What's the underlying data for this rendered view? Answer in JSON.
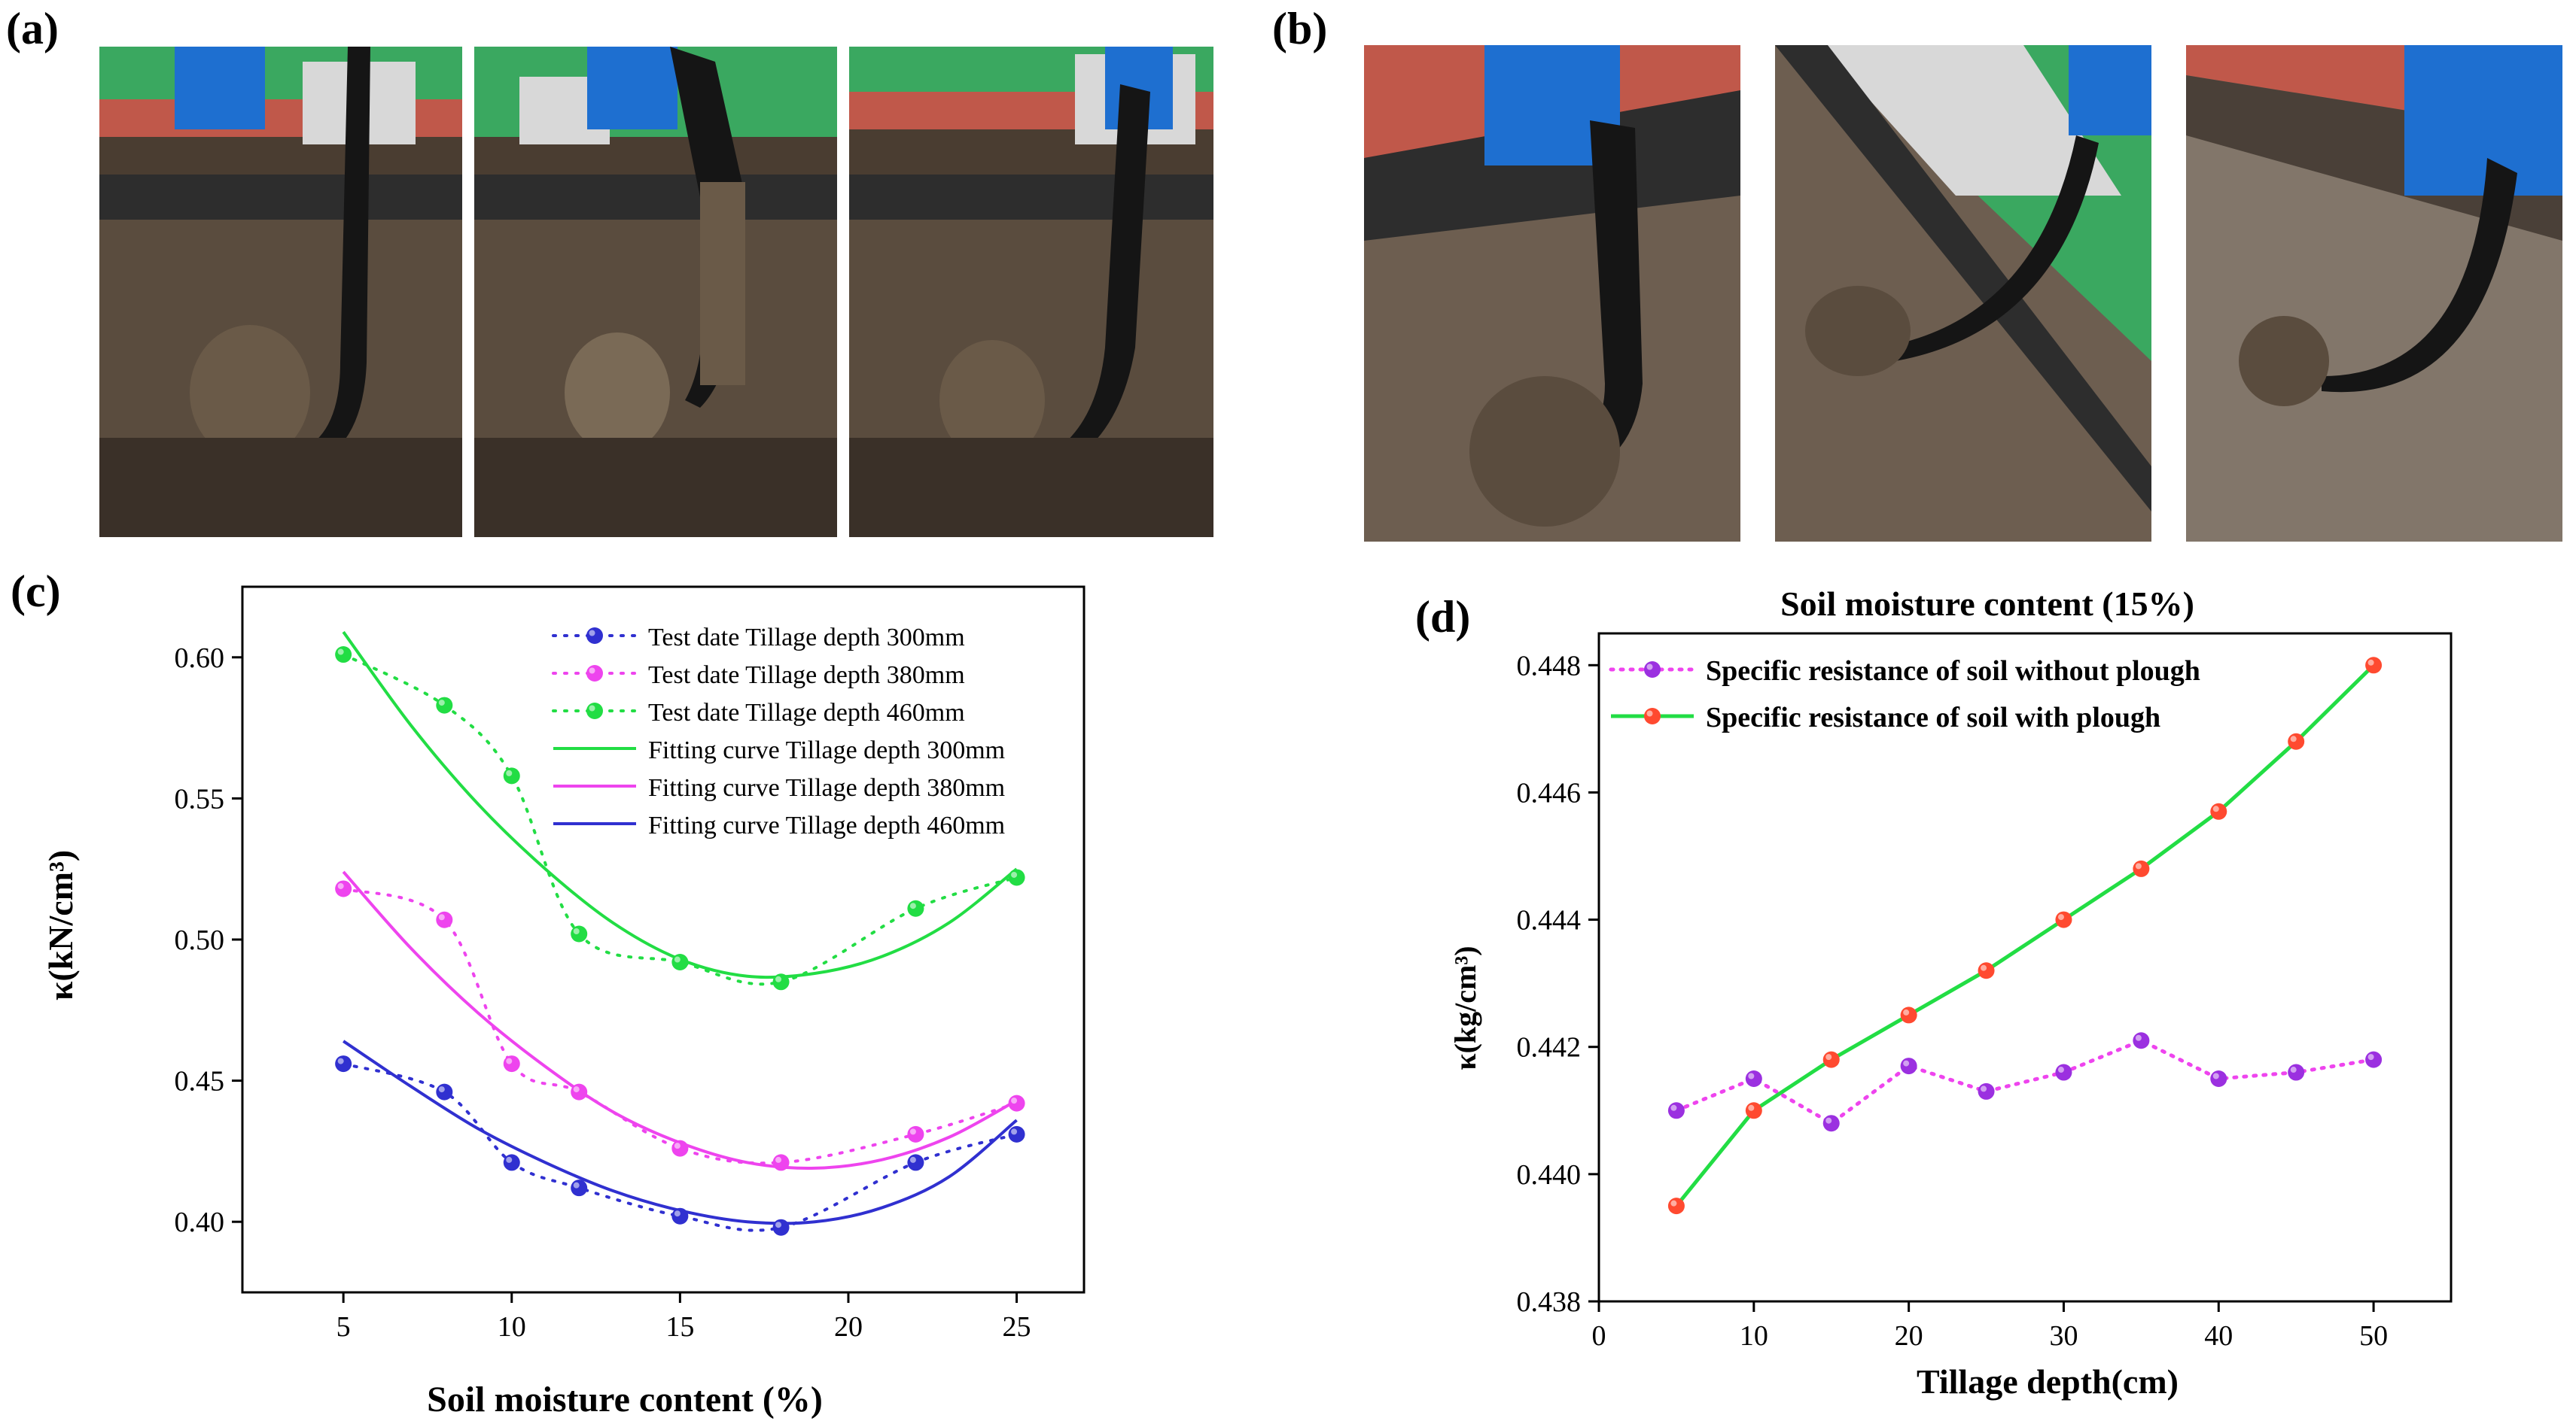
{
  "panels": {
    "a": "(a)",
    "b": "(b)",
    "c": "(c)",
    "d": "(d)"
  },
  "colors": {
    "blue": "#3030d0",
    "magenta": "#ee44ee",
    "green": "#22dd44",
    "purple": "#9b30e0",
    "red": "#ff4a30",
    "frame_blue": "#1e6fd0",
    "rail_red": "#c0584a",
    "wall_green": "#3aa860",
    "soil": "#5a4c3e"
  },
  "chart_data": [
    {
      "id": "c",
      "type": "scatter",
      "title": "",
      "xlabel": "Soil moisture content (%)",
      "ylabel": "κ(kN/cm³)",
      "xlim": [
        2,
        27
      ],
      "ylim": [
        0.375,
        0.625
      ],
      "xticks": [
        5,
        10,
        15,
        20,
        25
      ],
      "yticks": [
        0.4,
        0.45,
        0.5,
        0.55,
        0.6
      ],
      "legend_position": "top-right",
      "test_x": [
        5,
        8,
        10,
        12,
        15,
        18,
        22,
        25
      ],
      "series": [
        {
          "name": "Test date Tillage depth 300mm",
          "kind": "points",
          "color": "#3030d0",
          "x": [
            5,
            8,
            10,
            12,
            15,
            18,
            22,
            25
          ],
          "values": [
            0.456,
            0.446,
            0.421,
            0.412,
            0.402,
            0.398,
            0.421,
            0.431
          ]
        },
        {
          "name": "Test date Tillage depth 380mm",
          "kind": "points",
          "color": "#ee44ee",
          "x": [
            5,
            8,
            10,
            12,
            15,
            18,
            22,
            25
          ],
          "values": [
            0.518,
            0.507,
            0.456,
            0.446,
            0.426,
            0.421,
            0.431,
            0.442
          ]
        },
        {
          "name": "Test date Tillage depth 460mm",
          "kind": "points",
          "color": "#22dd44",
          "x": [
            5,
            8,
            10,
            12,
            15,
            18,
            22,
            25
          ],
          "values": [
            0.601,
            0.583,
            0.558,
            0.502,
            0.492,
            0.485,
            0.511,
            0.522
          ]
        },
        {
          "name": "Fitting curve Tillage depth 300mm",
          "kind": "curve",
          "color": "#22dd44",
          "x": [
            5,
            7,
            9,
            11,
            13,
            15,
            17,
            19,
            21,
            23,
            25
          ],
          "values": [
            0.609,
            0.576,
            0.548,
            0.525,
            0.506,
            0.493,
            0.487,
            0.488,
            0.494,
            0.506,
            0.525
          ]
        },
        {
          "name": "Fitting curve Tillage depth 380mm",
          "kind": "curve",
          "color": "#ee44ee",
          "x": [
            5,
            7,
            9,
            11,
            13,
            15,
            17,
            19,
            21,
            23,
            25
          ],
          "values": [
            0.524,
            0.497,
            0.474,
            0.455,
            0.439,
            0.428,
            0.421,
            0.419,
            0.422,
            0.43,
            0.443
          ]
        },
        {
          "name": "Fitting curve Tillage depth 460mm",
          "kind": "curve",
          "color": "#3030d0",
          "x": [
            5,
            7,
            9,
            11,
            13,
            15,
            17,
            19,
            21,
            23,
            25
          ],
          "values": [
            0.464,
            0.448,
            0.433,
            0.421,
            0.411,
            0.404,
            0.4,
            0.4,
            0.405,
            0.416,
            0.436
          ]
        }
      ]
    },
    {
      "id": "d",
      "type": "line",
      "title": "Soil moisture content (15%)",
      "xlabel": "Tillage depth(cm)",
      "ylabel": "κ(kg/cm³)",
      "xlim": [
        0,
        55
      ],
      "ylim": [
        0.438,
        0.4485
      ],
      "xticks": [
        0,
        10,
        20,
        30,
        40,
        50
      ],
      "yticks": [
        0.438,
        0.44,
        0.442,
        0.444,
        0.446,
        0.448
      ],
      "legend_position": "top-left",
      "x": [
        5,
        10,
        15,
        20,
        25,
        30,
        35,
        40,
        45,
        50
      ],
      "series": [
        {
          "name": "Specific resistance of soil without plough",
          "color": "#9b30e0",
          "line_color": "#ee44ee",
          "dotted": true,
          "values": [
            0.441,
            0.4415,
            0.4408,
            0.4417,
            0.4413,
            0.4416,
            0.4421,
            0.4415,
            0.4416,
            0.4418
          ]
        },
        {
          "name": "Specific resistance of soil with plough",
          "color": "#ff4a30",
          "line_color": "#22dd44",
          "dotted": false,
          "values": [
            0.4395,
            0.441,
            0.4418,
            0.4425,
            0.4432,
            0.444,
            0.4448,
            0.4457,
            0.4468,
            0.448
          ]
        }
      ]
    }
  ]
}
